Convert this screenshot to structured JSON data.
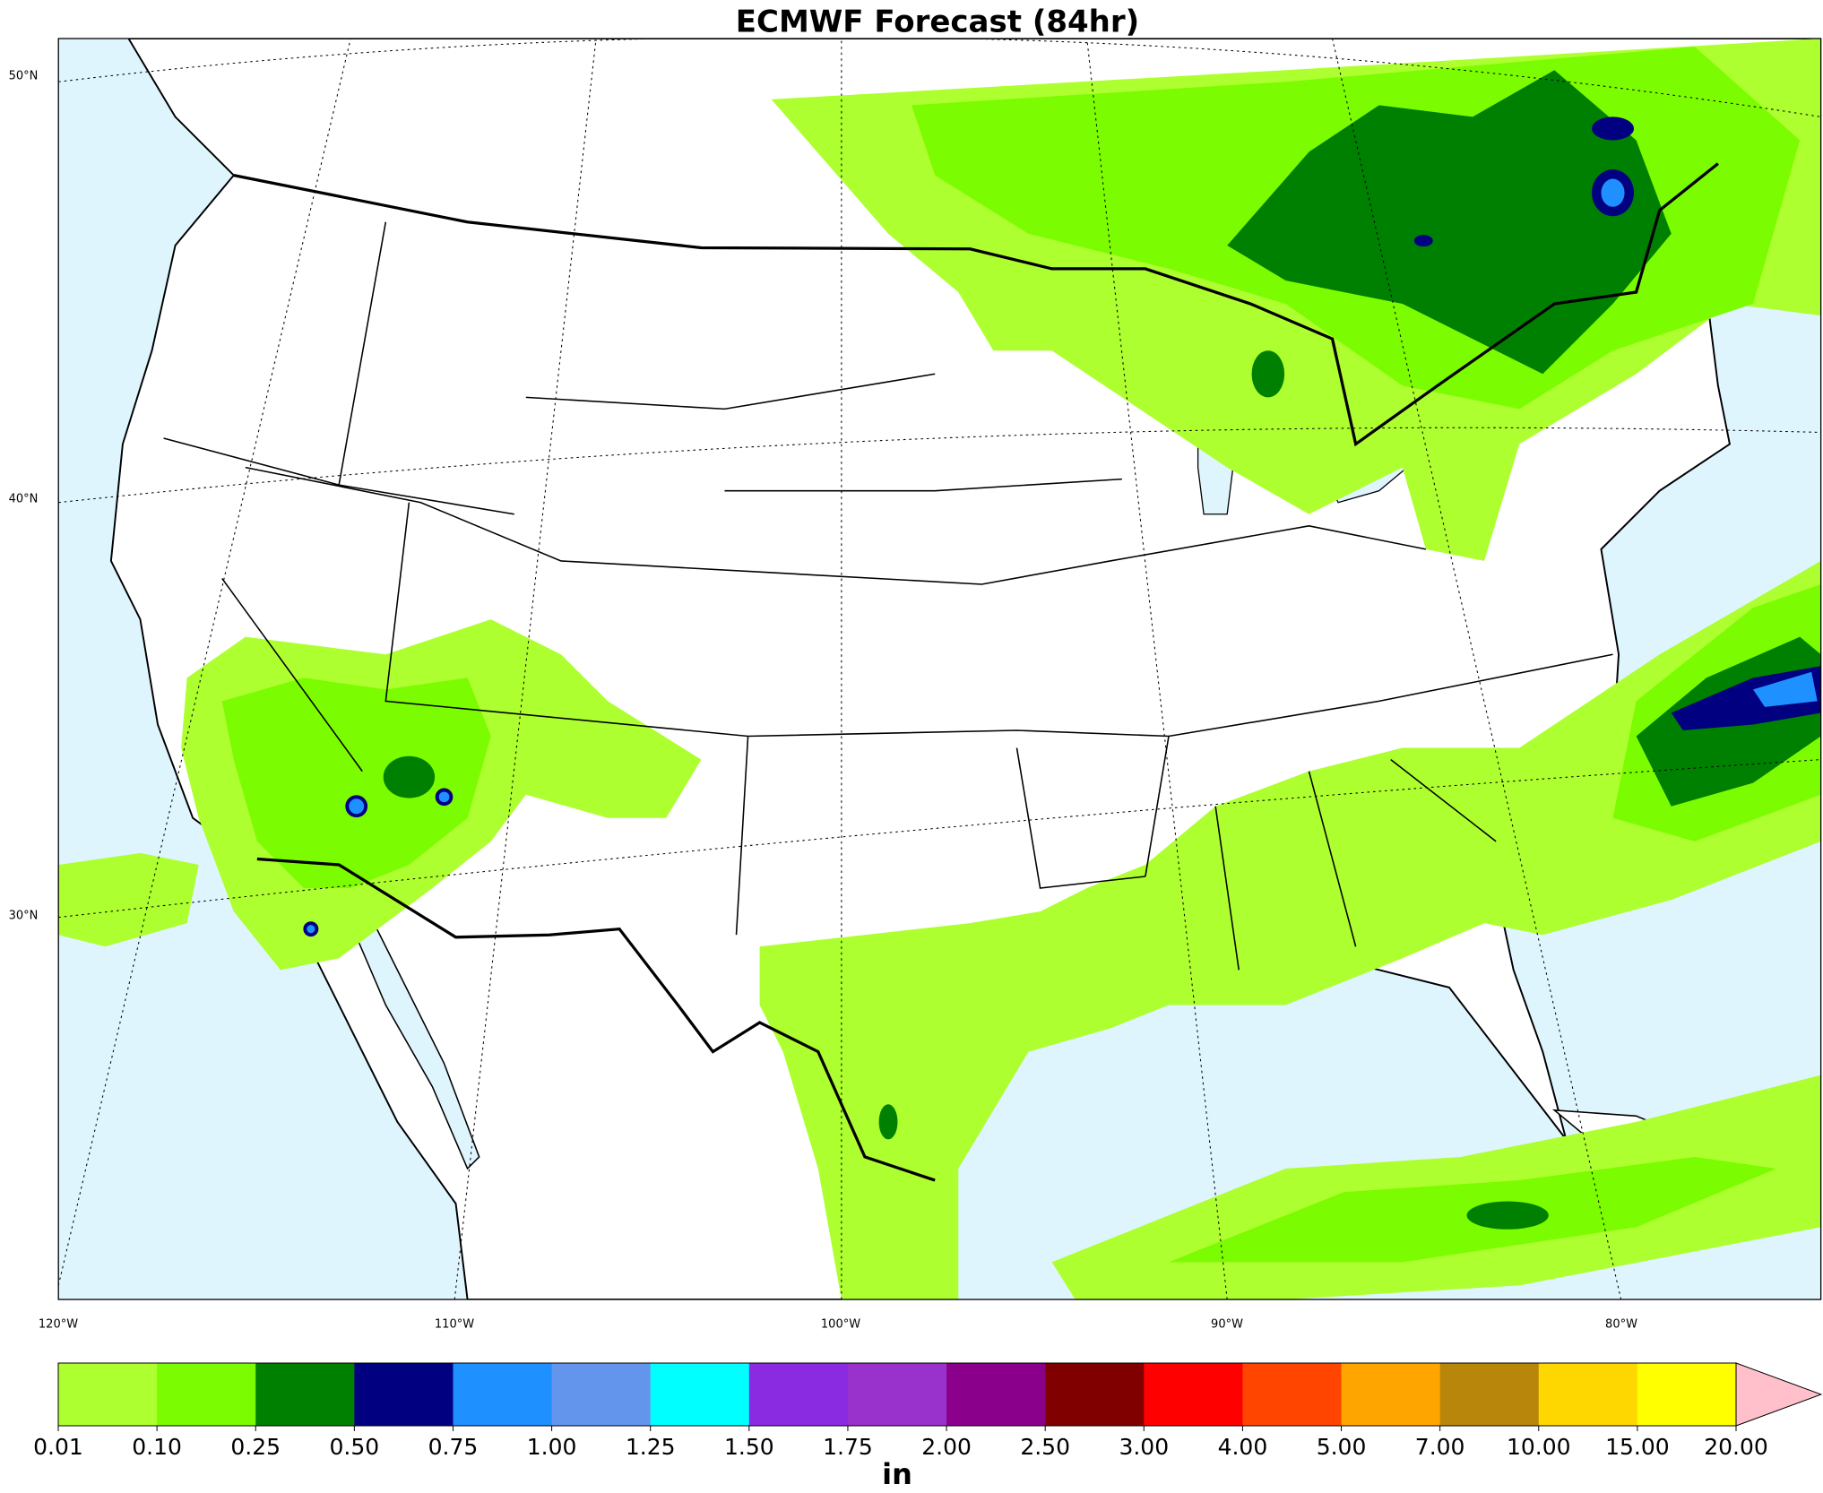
{
  "title": "ECMWF Forecast (84hr)",
  "latitude_labels": [
    "50°N",
    "40°N",
    "30°N"
  ],
  "longitude_labels": [
    "120°W",
    "110°W",
    "100°W",
    "90°W",
    "80°W"
  ],
  "colorbar": {
    "colors": [
      "#adff2f",
      "#7cfc00",
      "#008000",
      "#000080",
      "#1e90ff",
      "#6495ed",
      "#00ffff",
      "#8a2be2",
      "#9932cc",
      "#8b008b",
      "#800000",
      "#ff0000",
      "#ff4500",
      "#ffa500",
      "#b8860b",
      "#ffd700",
      "#ffff00"
    ],
    "over_color": "#ffc0cb",
    "labels": [
      "0.01",
      "0.10",
      "0.25",
      "0.50",
      "0.75",
      "1.00",
      "1.25",
      "1.50",
      "1.75",
      "2.00",
      "2.50",
      "3.00",
      "4.00",
      "5.00",
      "7.00",
      "10.00",
      "15.00",
      "20.00"
    ],
    "unit": "in"
  }
}
